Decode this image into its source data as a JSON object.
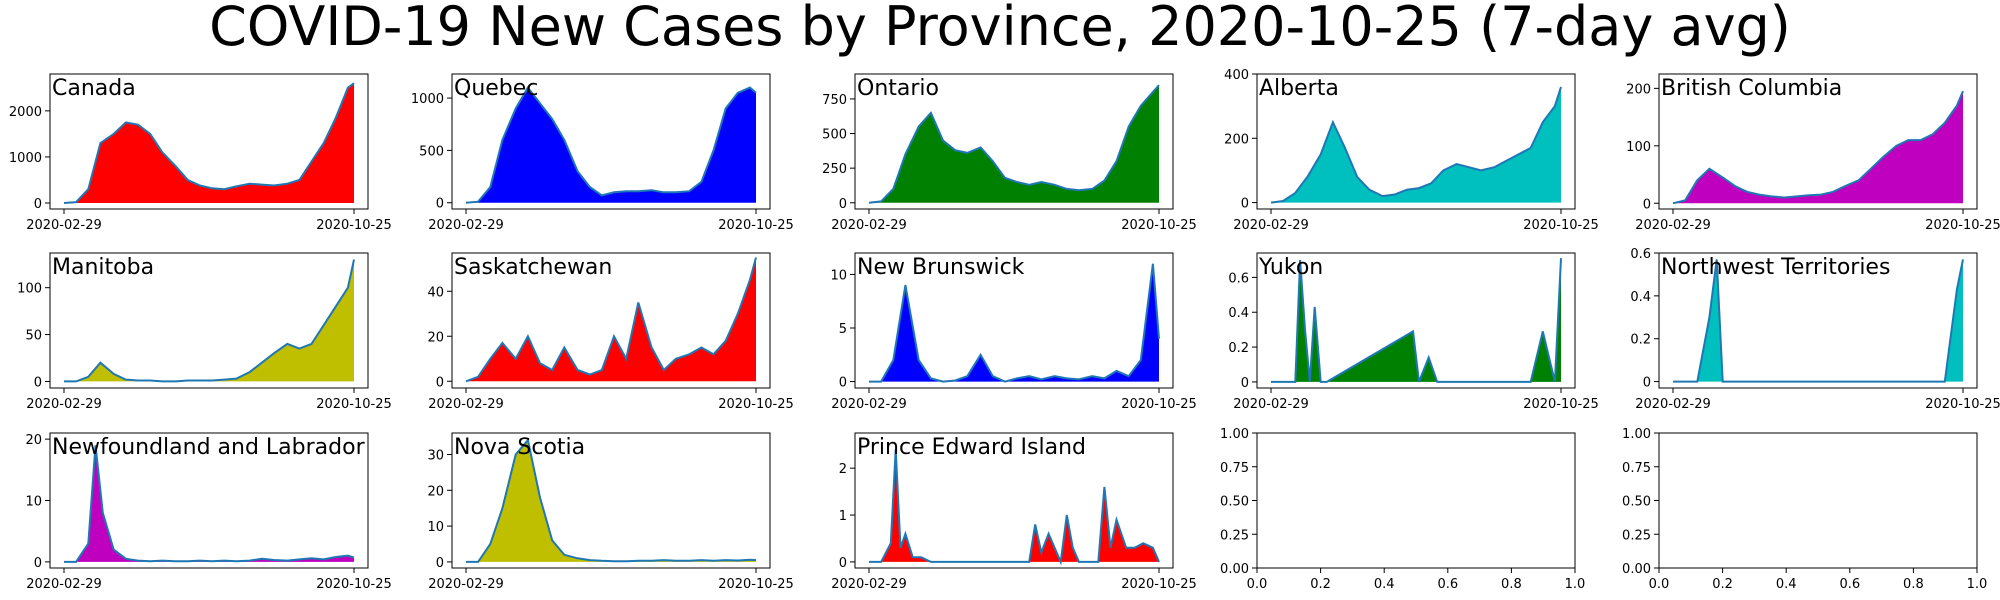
{
  "title": "COVID-19 New Cases by Province, 2020-10-25 (7-day avg)",
  "date_start": "2020-02-29",
  "date_end": "2020-10-25",
  "chart_data": [
    {
      "type": "area",
      "title": "Canada",
      "fill_color": "#ff0000",
      "line_color": "#1f77b4",
      "x_ticks": [
        "2020-02-29",
        "2020-10-25"
      ],
      "yticks": [
        0,
        1000,
        2000
      ],
      "ylim": [
        -130,
        2800
      ],
      "x": [
        "2020-02-29",
        "2020-03-10",
        "2020-03-20",
        "2020-03-30",
        "2020-04-10",
        "2020-04-20",
        "2020-04-30",
        "2020-05-10",
        "2020-05-20",
        "2020-05-31",
        "2020-06-10",
        "2020-06-20",
        "2020-06-30",
        "2020-07-10",
        "2020-07-20",
        "2020-07-31",
        "2020-08-10",
        "2020-08-20",
        "2020-08-31",
        "2020-09-10",
        "2020-09-20",
        "2020-09-30",
        "2020-10-10",
        "2020-10-20",
        "2020-10-25"
      ],
      "series": [
        {
          "values": [
            0,
            20,
            300,
            1300,
            1500,
            1750,
            1700,
            1500,
            1100,
            800,
            500,
            380,
            320,
            300,
            360,
            420,
            400,
            380,
            420,
            500,
            900,
            1300,
            1850,
            2500,
            2600
          ]
        }
      ]
    },
    {
      "type": "area",
      "title": "Quebec",
      "fill_color": "#0000ff",
      "line_color": "#1f77b4",
      "x_ticks": [
        "2020-02-29",
        "2020-10-25"
      ],
      "yticks": [
        0,
        500,
        1000
      ],
      "ylim": [
        -60,
        1230
      ],
      "x": [
        "2020-02-29",
        "2020-03-10",
        "2020-03-20",
        "2020-03-30",
        "2020-04-10",
        "2020-04-20",
        "2020-04-30",
        "2020-05-10",
        "2020-05-20",
        "2020-05-31",
        "2020-06-10",
        "2020-06-20",
        "2020-06-30",
        "2020-07-10",
        "2020-07-20",
        "2020-07-31",
        "2020-08-10",
        "2020-08-20",
        "2020-08-31",
        "2020-09-10",
        "2020-09-20",
        "2020-09-30",
        "2020-10-10",
        "2020-10-20",
        "2020-10-25"
      ],
      "series": [
        {
          "values": [
            0,
            10,
            150,
            600,
            900,
            1100,
            950,
            800,
            600,
            300,
            150,
            70,
            100,
            110,
            110,
            120,
            100,
            100,
            110,
            200,
            500,
            900,
            1050,
            1100,
            1050
          ]
        }
      ]
    },
    {
      "type": "area",
      "title": "Ontario",
      "fill_color": "#008000",
      "line_color": "#1f77b4",
      "x_ticks": [
        "2020-02-29",
        "2020-10-25"
      ],
      "yticks": [
        0,
        250,
        500,
        750
      ],
      "ylim": [
        -45,
        930
      ],
      "x": [
        "2020-02-29",
        "2020-03-10",
        "2020-03-20",
        "2020-03-30",
        "2020-04-10",
        "2020-04-20",
        "2020-04-30",
        "2020-05-10",
        "2020-05-20",
        "2020-05-31",
        "2020-06-10",
        "2020-06-20",
        "2020-06-30",
        "2020-07-10",
        "2020-07-20",
        "2020-07-31",
        "2020-08-10",
        "2020-08-20",
        "2020-08-31",
        "2020-09-10",
        "2020-09-20",
        "2020-09-30",
        "2020-10-10",
        "2020-10-20",
        "2020-10-25"
      ],
      "series": [
        {
          "values": [
            0,
            10,
            100,
            350,
            550,
            650,
            450,
            380,
            360,
            400,
            300,
            180,
            150,
            130,
            150,
            130,
            100,
            90,
            100,
            160,
            300,
            550,
            700,
            800,
            850
          ]
        }
      ]
    },
    {
      "type": "area",
      "title": "Alberta",
      "fill_color": "#00bfbf",
      "line_color": "#1f77b4",
      "x_ticks": [
        "2020-02-29",
        "2020-10-25"
      ],
      "yticks": [
        0,
        200,
        400
      ],
      "ylim": [
        -20,
        400
      ],
      "x": [
        "2020-02-29",
        "2020-03-10",
        "2020-03-20",
        "2020-03-30",
        "2020-04-10",
        "2020-04-20",
        "2020-04-30",
        "2020-05-10",
        "2020-05-20",
        "2020-05-31",
        "2020-06-10",
        "2020-06-20",
        "2020-06-30",
        "2020-07-10",
        "2020-07-20",
        "2020-07-31",
        "2020-08-10",
        "2020-08-20",
        "2020-08-31",
        "2020-09-10",
        "2020-09-20",
        "2020-09-30",
        "2020-10-10",
        "2020-10-20",
        "2020-10-25"
      ],
      "series": [
        {
          "values": [
            0,
            5,
            30,
            80,
            150,
            250,
            170,
            80,
            40,
            20,
            25,
            40,
            45,
            60,
            100,
            120,
            110,
            100,
            110,
            130,
            150,
            170,
            250,
            300,
            360
          ]
        }
      ]
    },
    {
      "type": "area",
      "title": "British Columbia",
      "fill_color": "#bf00bf",
      "line_color": "#1f77b4",
      "x_ticks": [
        "2020-02-29",
        "2020-10-25"
      ],
      "yticks": [
        0,
        100,
        200
      ],
      "ylim": [
        -10,
        225
      ],
      "x": [
        "2020-02-29",
        "2020-03-10",
        "2020-03-20",
        "2020-03-30",
        "2020-04-10",
        "2020-04-20",
        "2020-04-30",
        "2020-05-10",
        "2020-05-20",
        "2020-05-31",
        "2020-06-10",
        "2020-06-20",
        "2020-06-30",
        "2020-07-10",
        "2020-07-20",
        "2020-07-31",
        "2020-08-10",
        "2020-08-20",
        "2020-08-31",
        "2020-09-10",
        "2020-09-20",
        "2020-09-30",
        "2020-10-10",
        "2020-10-20",
        "2020-10-25"
      ],
      "series": [
        {
          "values": [
            0,
            5,
            40,
            60,
            45,
            30,
            20,
            15,
            12,
            10,
            12,
            14,
            15,
            20,
            30,
            40,
            60,
            80,
            100,
            110,
            110,
            120,
            140,
            170,
            195
          ]
        }
      ]
    },
    {
      "type": "area",
      "title": "Manitoba",
      "fill_color": "#bfbf00",
      "line_color": "#1f77b4",
      "x_ticks": [
        "2020-02-29",
        "2020-10-25"
      ],
      "yticks": [
        0,
        50,
        100
      ],
      "ylim": [
        -7,
        137
      ],
      "x": [
        "2020-02-29",
        "2020-03-10",
        "2020-03-20",
        "2020-03-30",
        "2020-04-10",
        "2020-04-20",
        "2020-04-30",
        "2020-05-10",
        "2020-05-20",
        "2020-05-31",
        "2020-06-10",
        "2020-06-20",
        "2020-06-30",
        "2020-07-10",
        "2020-07-20",
        "2020-07-31",
        "2020-08-10",
        "2020-08-20",
        "2020-08-31",
        "2020-09-10",
        "2020-09-20",
        "2020-09-30",
        "2020-10-10",
        "2020-10-20",
        "2020-10-25"
      ],
      "series": [
        {
          "values": [
            0,
            0,
            5,
            20,
            8,
            2,
            1,
            1,
            0,
            0,
            1,
            1,
            1,
            2,
            3,
            10,
            20,
            30,
            40,
            35,
            40,
            60,
            80,
            100,
            130
          ]
        }
      ]
    },
    {
      "type": "area",
      "title": "Saskatchewan",
      "fill_color": "#ff0000",
      "line_color": "#1f77b4",
      "x_ticks": [
        "2020-02-29",
        "2020-10-25"
      ],
      "yticks": [
        0,
        20,
        40
      ],
      "ylim": [
        -3,
        57
      ],
      "x": [
        "2020-02-29",
        "2020-03-10",
        "2020-03-20",
        "2020-03-30",
        "2020-04-10",
        "2020-04-20",
        "2020-04-30",
        "2020-05-10",
        "2020-05-20",
        "2020-05-31",
        "2020-06-10",
        "2020-06-20",
        "2020-06-30",
        "2020-07-10",
        "2020-07-20",
        "2020-07-31",
        "2020-08-10",
        "2020-08-20",
        "2020-08-31",
        "2020-09-10",
        "2020-09-20",
        "2020-09-30",
        "2020-10-10",
        "2020-10-20",
        "2020-10-25"
      ],
      "series": [
        {
          "values": [
            0,
            2,
            10,
            17,
            10,
            20,
            8,
            5,
            15,
            5,
            3,
            5,
            20,
            10,
            35,
            15,
            5,
            10,
            12,
            15,
            12,
            18,
            30,
            45,
            55
          ]
        }
      ]
    },
    {
      "type": "area",
      "title": "New Brunswick",
      "fill_color": "#0000ff",
      "line_color": "#1f77b4",
      "x_ticks": [
        "2020-02-29",
        "2020-10-25"
      ],
      "yticks": [
        0,
        5,
        10
      ],
      "ylim": [
        -0.6,
        12
      ],
      "x": [
        "2020-02-29",
        "2020-03-10",
        "2020-03-20",
        "2020-03-30",
        "2020-04-10",
        "2020-04-20",
        "2020-04-30",
        "2020-05-10",
        "2020-05-20",
        "2020-05-31",
        "2020-06-10",
        "2020-06-20",
        "2020-06-30",
        "2020-07-10",
        "2020-07-20",
        "2020-07-31",
        "2020-08-10",
        "2020-08-20",
        "2020-08-31",
        "2020-09-10",
        "2020-09-20",
        "2020-09-30",
        "2020-10-10",
        "2020-10-20",
        "2020-10-25"
      ],
      "series": [
        {
          "values": [
            0,
            0,
            2,
            9,
            2,
            0.3,
            0,
            0.1,
            0.5,
            2.5,
            0.5,
            0,
            0.3,
            0.5,
            0.2,
            0.5,
            0.3,
            0.2,
            0.5,
            0.3,
            1,
            0.5,
            2,
            11,
            4
          ]
        }
      ]
    },
    {
      "type": "area",
      "title": "Yukon",
      "fill_color": "#008000",
      "line_color": "#1f77b4",
      "x_ticks": [
        "2020-02-29",
        "2020-10-25"
      ],
      "yticks": [
        0.0,
        0.2,
        0.4,
        0.6
      ],
      "ylim": [
        -0.035,
        0.74
      ],
      "x": [
        "2020-02-29",
        "2020-03-10",
        "2020-03-20",
        "2020-03-24",
        "2020-03-28",
        "2020-04-01",
        "2020-04-05",
        "2020-04-10",
        "2020-04-15",
        "2020-06-25",
        "2020-06-30",
        "2020-07-08",
        "2020-07-15",
        "2020-09-30",
        "2020-10-10",
        "2020-10-20",
        "2020-10-25"
      ],
      "series": [
        {
          "values": [
            0,
            0,
            0,
            0.7,
            0.3,
            0,
            0.43,
            0,
            0,
            0.29,
            0,
            0.14,
            0,
            0,
            0.29,
            0,
            0.71
          ]
        }
      ]
    },
    {
      "type": "area",
      "title": "Northwest Territories",
      "fill_color": "#00bfbf",
      "line_color": "#1f77b4",
      "x_ticks": [
        "2020-02-29",
        "2020-10-25"
      ],
      "yticks": [
        0.0,
        0.2,
        0.4,
        0.6
      ],
      "ylim": [
        -0.03,
        0.6
      ],
      "x": [
        "2020-02-29",
        "2020-03-10",
        "2020-03-20",
        "2020-03-30",
        "2020-04-05",
        "2020-04-10",
        "2020-04-20",
        "2020-10-10",
        "2020-10-20",
        "2020-10-25"
      ],
      "series": [
        {
          "values": [
            0,
            0,
            0,
            0.3,
            0.57,
            0,
            0,
            0,
            0.43,
            0.57
          ]
        }
      ]
    },
    {
      "type": "area",
      "title": "Newfoundland and Labrador",
      "fill_color": "#bf00bf",
      "line_color": "#1f77b4",
      "x_ticks": [
        "2020-02-29",
        "2020-10-25"
      ],
      "yticks": [
        0,
        10,
        20
      ],
      "ylim": [
        -1,
        21
      ],
      "x": [
        "2020-02-29",
        "2020-03-10",
        "2020-03-20",
        "2020-03-26",
        "2020-04-01",
        "2020-04-10",
        "2020-04-20",
        "2020-04-30",
        "2020-05-10",
        "2020-05-20",
        "2020-05-31",
        "2020-06-10",
        "2020-06-20",
        "2020-06-30",
        "2020-07-10",
        "2020-07-20",
        "2020-07-31",
        "2020-08-10",
        "2020-08-20",
        "2020-08-31",
        "2020-09-10",
        "2020-09-20",
        "2020-09-30",
        "2020-10-10",
        "2020-10-20",
        "2020-10-25"
      ],
      "series": [
        {
          "values": [
            0,
            0,
            3,
            19,
            8,
            2,
            0.5,
            0.2,
            0.1,
            0.2,
            0.1,
            0.1,
            0.2,
            0.1,
            0.2,
            0.1,
            0.2,
            0.5,
            0.3,
            0.2,
            0.4,
            0.6,
            0.4,
            0.8,
            1,
            0.7
          ]
        }
      ]
    },
    {
      "type": "area",
      "title": "Nova Scotia",
      "fill_color": "#bfbf00",
      "line_color": "#1f77b4",
      "x_ticks": [
        "2020-02-29",
        "2020-10-25"
      ],
      "yticks": [
        0,
        10,
        20,
        30
      ],
      "ylim": [
        -1.7,
        36
      ],
      "x": [
        "2020-02-29",
        "2020-03-10",
        "2020-03-20",
        "2020-03-30",
        "2020-04-10",
        "2020-04-20",
        "2020-04-30",
        "2020-05-10",
        "2020-05-20",
        "2020-05-31",
        "2020-06-10",
        "2020-06-20",
        "2020-06-30",
        "2020-07-10",
        "2020-07-20",
        "2020-07-31",
        "2020-08-10",
        "2020-08-20",
        "2020-08-31",
        "2020-09-10",
        "2020-09-20",
        "2020-09-30",
        "2020-10-10",
        "2020-10-20",
        "2020-10-25"
      ],
      "series": [
        {
          "values": [
            0,
            0,
            5,
            15,
            30,
            34,
            18,
            6,
            2,
            1,
            0.5,
            0.3,
            0.2,
            0.2,
            0.3,
            0.3,
            0.5,
            0.3,
            0.3,
            0.5,
            0.3,
            0.5,
            0.4,
            0.6,
            0.5
          ]
        }
      ]
    },
    {
      "type": "area",
      "title": "Prince Edward Island",
      "fill_color": "#ff0000",
      "line_color": "#1f77b4",
      "x_ticks": [
        "2020-02-29",
        "2020-10-25"
      ],
      "yticks": [
        0,
        1,
        2
      ],
      "ylim": [
        -0.13,
        2.75
      ],
      "x": [
        "2020-02-29",
        "2020-03-10",
        "2020-03-18",
        "2020-03-22",
        "2020-03-26",
        "2020-03-30",
        "2020-04-05",
        "2020-04-12",
        "2020-04-20",
        "2020-07-10",
        "2020-07-15",
        "2020-07-20",
        "2020-07-26",
        "2020-08-05",
        "2020-08-10",
        "2020-08-15",
        "2020-08-20",
        "2020-09-05",
        "2020-09-10",
        "2020-09-15",
        "2020-09-20",
        "2020-09-28",
        "2020-10-05",
        "2020-10-12",
        "2020-10-20",
        "2020-10-25"
      ],
      "series": [
        {
          "values": [
            0,
            0,
            0.4,
            2.4,
            0.3,
            0.6,
            0.1,
            0.1,
            0,
            0,
            0.8,
            0.2,
            0.6,
            0,
            1,
            0.3,
            0,
            0,
            1.6,
            0.3,
            0.9,
            0.3,
            0.3,
            0.4,
            0.3,
            0
          ]
        }
      ]
    },
    {
      "type": "empty",
      "title": "",
      "x_ticks": [
        "0.0",
        "0.2",
        "0.4",
        "0.6",
        "0.8",
        "1.0"
      ],
      "y_ticks": [
        "0.00",
        "0.25",
        "0.50",
        "0.75",
        "1.00"
      ]
    },
    {
      "type": "empty",
      "title": "",
      "x_ticks": [
        "0.0",
        "0.2",
        "0.4",
        "0.6",
        "0.8",
        "1.0"
      ],
      "y_ticks": [
        "0.00",
        "0.25",
        "0.50",
        "0.75",
        "1.00"
      ]
    }
  ]
}
